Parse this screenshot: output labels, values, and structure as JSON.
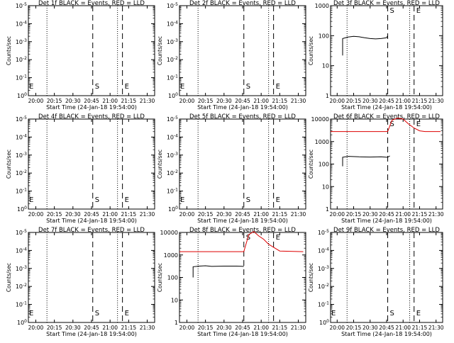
{
  "figure": {
    "xlabel": "Start Time (24-Jan-18 19:54:00)",
    "ylabel": "Counts/sec"
  },
  "chart_data": [
    {
      "type": "line",
      "title": "Det 1f BLACK = Events, RED = LLD",
      "x_ticks": [
        "20:00",
        "20:15",
        "20:30",
        "20:45",
        "21:00",
        "21:15",
        "21:30"
      ],
      "xlim": [
        "19:54",
        "21:36"
      ],
      "y_scale": "log",
      "y_tick_labels": [
        "10^0",
        "10^-1",
        "10^-2",
        "10^-3",
        "10^-4",
        "10^-5"
      ],
      "markers": {
        "dotted": [
          "20:09",
          "21:06"
        ],
        "dashed": [
          {
            "time": "20:46",
            "label": "S"
          },
          {
            "time": "21:10",
            "label": "E"
          }
        ],
        "left_label": "E"
      },
      "series": []
    },
    {
      "type": "line",
      "title": "Det 2f BLACK = Events, RED = LLD",
      "x_ticks": [
        "20:00",
        "20:15",
        "20:30",
        "20:45",
        "21:00",
        "21:15",
        "21:30"
      ],
      "xlim": [
        "19:54",
        "21:36"
      ],
      "y_scale": "log",
      "y_tick_labels": [
        "10^0",
        "10^-1",
        "10^-2",
        "10^-3",
        "10^-4",
        "10^-5"
      ],
      "markers": {
        "dotted": [
          "20:09",
          "21:06"
        ],
        "dashed": [
          {
            "time": "20:46",
            "label": "S"
          },
          {
            "time": "21:10",
            "label": "E"
          }
        ],
        "left_label": "E"
      },
      "series": []
    },
    {
      "type": "line",
      "title": "Det 3f BLACK = Events, RED = LLD",
      "x_ticks": [
        "20:00",
        "20:15",
        "20:30",
        "20:45",
        "21:00",
        "21:15",
        "21:30"
      ],
      "xlim": [
        "19:54",
        "21:36"
      ],
      "y_scale": "log",
      "y_tick_labels": [
        "1",
        "10",
        "100",
        "1000"
      ],
      "markers": {
        "dotted": [
          "20:09",
          "21:06"
        ],
        "dashed": [
          {
            "time": "20:46",
            "label": "S"
          },
          {
            "time": "21:10",
            "label": "E"
          }
        ],
        "left_label": ""
      },
      "series": [
        {
          "color": "#000000",
          "points": [
            [
              "20:05",
              22
            ],
            [
              "20:05",
              80
            ],
            [
              "20:10",
              90
            ],
            [
              "20:15",
              95
            ],
            [
              "20:20",
              92
            ],
            [
              "20:25",
              85
            ],
            [
              "20:30",
              80
            ],
            [
              "20:35",
              78
            ],
            [
              "20:40",
              80
            ],
            [
              "20:45",
              85
            ],
            [
              "20:46",
              100
            ]
          ]
        }
      ]
    },
    {
      "type": "line",
      "title": "Det 4f BLACK = Events, RED = LLD",
      "x_ticks": [
        "20:00",
        "20:15",
        "20:30",
        "20:45",
        "21:00",
        "21:15",
        "21:30"
      ],
      "xlim": [
        "19:54",
        "21:36"
      ],
      "y_scale": "log",
      "y_tick_labels": [
        "10^0",
        "10^-1",
        "10^-2",
        "10^-3",
        "10^-4",
        "10^-5"
      ],
      "markers": {
        "dotted": [
          "20:09",
          "21:06"
        ],
        "dashed": [
          {
            "time": "20:46",
            "label": "S"
          },
          {
            "time": "21:10",
            "label": "E"
          }
        ],
        "left_label": "E"
      },
      "series": []
    },
    {
      "type": "line",
      "title": "Det 5f BLACK = Events, RED = LLD",
      "x_ticks": [
        "20:00",
        "20:15",
        "20:30",
        "20:45",
        "21:00",
        "21:15",
        "21:30"
      ],
      "xlim": [
        "19:54",
        "21:36"
      ],
      "y_scale": "log",
      "y_tick_labels": [
        "10^0",
        "10^-1",
        "10^-2",
        "10^-3",
        "10^-4",
        "10^-5"
      ],
      "markers": {
        "dotted": [
          "20:09",
          "21:06"
        ],
        "dashed": [
          {
            "time": "20:46",
            "label": "S"
          },
          {
            "time": "21:10",
            "label": "E"
          }
        ],
        "left_label": "E"
      },
      "series": []
    },
    {
      "type": "line",
      "title": "Det 6f BLACK = Events, RED = LLD",
      "x_ticks": [
        "20:00",
        "20:15",
        "20:30",
        "20:45",
        "21:00",
        "21:15",
        "21:30"
      ],
      "xlim": [
        "19:54",
        "21:36"
      ],
      "y_scale": "log",
      "y_tick_labels": [
        "1",
        "10",
        "100",
        "1000",
        "10000"
      ],
      "markers": {
        "dotted": [
          "20:09",
          "21:06"
        ],
        "dashed": [
          {
            "time": "20:46",
            "label": "S"
          },
          {
            "time": "21:10",
            "label": "E"
          }
        ],
        "left_label": ""
      },
      "series": [
        {
          "color": "#000000",
          "points": [
            [
              "20:05",
              80
            ],
            [
              "20:05",
              200
            ],
            [
              "20:10",
              220
            ],
            [
              "20:20",
              210
            ],
            [
              "20:30",
              205
            ],
            [
              "20:40",
              210
            ],
            [
              "20:45",
              200
            ],
            [
              "20:46",
              200
            ],
            [
              "20:48",
              230
            ]
          ]
        },
        {
          "color": "#dd0000",
          "points": [
            [
              "19:54",
              2800
            ],
            [
              "20:46",
              2800
            ],
            [
              "20:50",
              9000
            ],
            [
              "20:55",
              11000
            ],
            [
              "21:00",
              10000
            ],
            [
              "21:05",
              6000
            ],
            [
              "21:10",
              4000
            ],
            [
              "21:15",
              3000
            ],
            [
              "21:20",
              2800
            ],
            [
              "21:34",
              2800
            ]
          ]
        }
      ]
    },
    {
      "type": "line",
      "title": "Det 7f BLACK = Events, RED = LLD",
      "x_ticks": [
        "20:00",
        "20:15",
        "20:30",
        "20:45",
        "21:00",
        "21:15",
        "21:30"
      ],
      "xlim": [
        "19:54",
        "21:36"
      ],
      "y_scale": "log",
      "y_tick_labels": [
        "10^0",
        "10^-1",
        "10^-2",
        "10^-3",
        "10^-4",
        "10^-5"
      ],
      "markers": {
        "dotted": [
          "20:09",
          "21:06"
        ],
        "dashed": [
          {
            "time": "20:46",
            "label": "S"
          },
          {
            "time": "21:10",
            "label": "E"
          }
        ],
        "left_label": "E"
      },
      "series": []
    },
    {
      "type": "line",
      "title": "Det 8f BLACK = Events, RED = LLD",
      "x_ticks": [
        "20:00",
        "20:15",
        "20:30",
        "20:45",
        "21:00",
        "21:15",
        "21:30"
      ],
      "xlim": [
        "19:54",
        "21:36"
      ],
      "y_scale": "log",
      "y_tick_labels": [
        "1",
        "10",
        "100",
        "1000",
        "10000"
      ],
      "markers": {
        "dotted": [
          "20:09",
          "21:06"
        ],
        "dashed": [
          {
            "time": "20:46",
            "label": "S"
          },
          {
            "time": "21:10",
            "label": "E"
          }
        ],
        "left_label": ""
      },
      "series": [
        {
          "color": "#000000",
          "points": [
            [
              "20:05",
              100
            ],
            [
              "20:05",
              300
            ],
            [
              "20:10",
              320
            ],
            [
              "20:15",
              330
            ],
            [
              "20:20",
              310
            ],
            [
              "20:30",
              320
            ],
            [
              "20:40",
              320
            ],
            [
              "20:46",
              310
            ]
          ]
        },
        {
          "color": "#dd0000",
          "points": [
            [
              "19:54",
              1400
            ],
            [
              "20:46",
              1400
            ],
            [
              "20:50",
              8000
            ],
            [
              "20:54",
              11000
            ],
            [
              "20:58",
              7000
            ],
            [
              "21:02",
              5000
            ],
            [
              "21:06",
              3000
            ],
            [
              "21:10",
              2200
            ],
            [
              "21:15",
              1500
            ],
            [
              "21:34",
              1400
            ]
          ]
        }
      ]
    },
    {
      "type": "line",
      "title": "Det 9f BLACK = Events, RED = LLD",
      "x_ticks": [
        "20:00",
        "20:15",
        "20:30",
        "20:45",
        "21:00",
        "21:15",
        "21:30"
      ],
      "xlim": [
        "19:54",
        "21:36"
      ],
      "y_scale": "log",
      "y_tick_labels": [
        "10^0",
        "10^-1",
        "10^-2",
        "10^-3",
        "10^-4",
        "10^-5"
      ],
      "markers": {
        "dotted": [
          "20:09",
          "21:06"
        ],
        "dashed": [
          {
            "time": "20:46",
            "label": "S"
          },
          {
            "time": "21:10",
            "label": "E"
          }
        ],
        "left_label": "E"
      },
      "series": []
    }
  ]
}
